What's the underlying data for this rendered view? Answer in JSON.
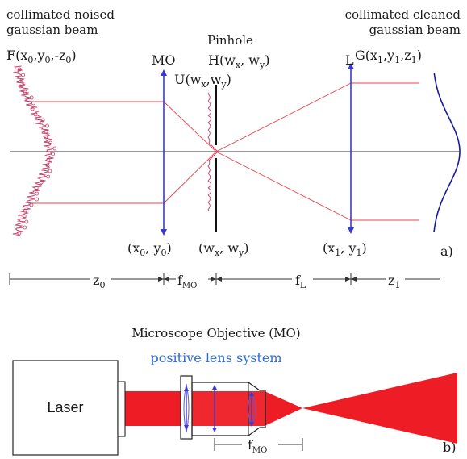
{
  "colors": {
    "ray": "#e8424a",
    "axis": "#333333",
    "lens": "#3a3ad0",
    "beam": "#ee1c24",
    "noise": "#c8406a",
    "text_blue": "#2d6bd6"
  },
  "panel_a": {
    "label": "a)",
    "input_beam": {
      "title_line1": "collimated noised",
      "title_line2": "gaussian beam",
      "field": "F(x",
      "field_sub0": "0",
      "field_mid": ",y",
      "field_sub1": "0",
      "field_mid2": ",-z",
      "field_sub2": "0",
      "field_end": ")"
    },
    "output_beam": {
      "title_line1": "collimated cleaned",
      "title_line2": "gaussian beam",
      "field": "G(x",
      "field_sub0": "1",
      "field_mid": ",y",
      "field_sub1": "1",
      "field_mid2": ",z",
      "field_sub2": "1",
      "field_end": ")"
    },
    "mo_label": "MO",
    "u_label": "U(w",
    "u_sub_x": "x",
    "u_mid": ",w",
    "u_sub_y": "y",
    "u_end": ")",
    "pinhole_title": "Pinhole",
    "h_label": "H(w",
    "h_sub_x": "x",
    "h_mid": ", w",
    "h_sub_y": "y",
    "h_end": ")",
    "l_label": "L",
    "coord0": "(x",
    "coord0_sub_a": "0",
    "coord0_mid": ", y",
    "coord0_sub_b": "0",
    "coord0_end": ")",
    "coordw": "(w",
    "coordw_sub_a": "x",
    "coordw_mid": ", w",
    "coordw_sub_b": "y",
    "coordw_end": ")",
    "coord1": "(x",
    "coord1_sub_a": "1",
    "coord1_mid": ", y",
    "coord1_sub_b": "1",
    "coord1_end": ")",
    "dist_z0": "z",
    "dist_z0_sub": "0",
    "dist_fmo": "f",
    "dist_fmo_sub": "MO",
    "dist_fl": "f",
    "dist_fl_sub": "L",
    "dist_z1": "z",
    "dist_z1_sub": "1"
  },
  "panel_b": {
    "label": "b)",
    "title": "Microscope Objective (MO)",
    "subtitle": "positive lens system",
    "laser_label": "Laser",
    "dist_fmo": "f",
    "dist_fmo_sub": "MO"
  }
}
